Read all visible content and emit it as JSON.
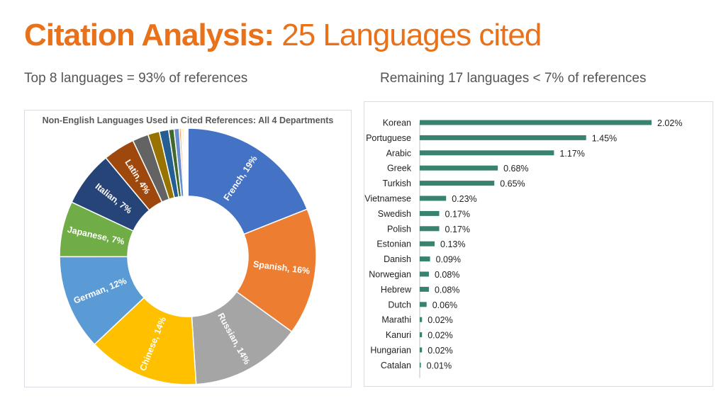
{
  "title": {
    "bold": "Citation Analysis:",
    "light": "25 Languages cited"
  },
  "subtitle_left": "Top 8 languages = 93% of references",
  "subtitle_right": "Remaining 17 languages < 7% of references",
  "colors": {
    "title": "#e8711a",
    "bar": "#3a8270"
  },
  "chart_data": [
    {
      "type": "pie",
      "title": "Non-English Languages Used in Cited References: All 4 Departments",
      "slices": [
        {
          "label": "French, 19%",
          "value": 19,
          "color": "#4472c4"
        },
        {
          "label": "Spanish, 16%",
          "value": 16,
          "color": "#ed7d31"
        },
        {
          "label": "Russian, 14%",
          "value": 14,
          "color": "#a5a5a5"
        },
        {
          "label": "Chinese, 14%",
          "value": 14,
          "color": "#ffc000"
        },
        {
          "label": "German, 12%",
          "value": 12,
          "color": "#5b9bd5"
        },
        {
          "label": "Japanese, 7%",
          "value": 7,
          "color": "#70ad47"
        },
        {
          "label": "Italian, 7%",
          "value": 7,
          "color": "#264478"
        },
        {
          "label": "Latin, 4%",
          "value": 4,
          "color": "#9e480e"
        },
        {
          "label": "",
          "value": 2.02,
          "color": "#636363"
        },
        {
          "label": "",
          "value": 1.45,
          "color": "#997300"
        },
        {
          "label": "",
          "value": 1.17,
          "color": "#255e91"
        },
        {
          "label": "",
          "value": 0.68,
          "color": "#43682b"
        },
        {
          "label": "",
          "value": 0.65,
          "color": "#698ed0"
        },
        {
          "label": "",
          "value": 0.23,
          "color": "#f1975a"
        },
        {
          "label": "",
          "value": 0.17,
          "color": "#b7b7b7"
        },
        {
          "label": "",
          "value": 0.17,
          "color": "#ffcd33"
        },
        {
          "label": "",
          "value": 0.13,
          "color": "#7cafdd"
        },
        {
          "label": "",
          "value": 0.09,
          "color": "#8cc168"
        },
        {
          "label": "",
          "value": 0.08,
          "color": "#335aa1"
        },
        {
          "label": "",
          "value": 0.08,
          "color": "#d26012"
        },
        {
          "label": "",
          "value": 0.06,
          "color": "#848484"
        },
        {
          "label": "",
          "value": 0.02,
          "color": "#cc9a00"
        },
        {
          "label": "",
          "value": 0.02,
          "color": "#327dc2"
        },
        {
          "label": "",
          "value": 0.02,
          "color": "#5a8a39"
        },
        {
          "label": "",
          "value": 0.01,
          "color": "#8faadc"
        }
      ]
    },
    {
      "type": "bar",
      "orientation": "horizontal",
      "categories": [
        "Korean",
        "Portuguese",
        "Arabic",
        "Greek",
        "Turkish",
        "Vietnamese",
        "Swedish",
        "Polish",
        "Estonian",
        "Danish",
        "Norwegian",
        "Hebrew",
        "Dutch",
        "Marathi",
        "Kanuri",
        "Hungarian",
        "Catalan"
      ],
      "values": [
        2.02,
        1.45,
        1.17,
        0.68,
        0.65,
        0.23,
        0.17,
        0.17,
        0.13,
        0.09,
        0.08,
        0.08,
        0.06,
        0.02,
        0.02,
        0.02,
        0.01
      ],
      "value_labels": [
        "2.02%",
        "1.45%",
        "1.17%",
        "0.68%",
        "0.65%",
        "0.23%",
        "0.17%",
        "0.17%",
        "0.13%",
        "0.09%",
        "0.08%",
        "0.08%",
        "0.06%",
        "0.02%",
        "0.02%",
        "0.02%",
        "0.01%"
      ],
      "xlim": [
        0,
        2.02
      ],
      "grid": false
    }
  ]
}
